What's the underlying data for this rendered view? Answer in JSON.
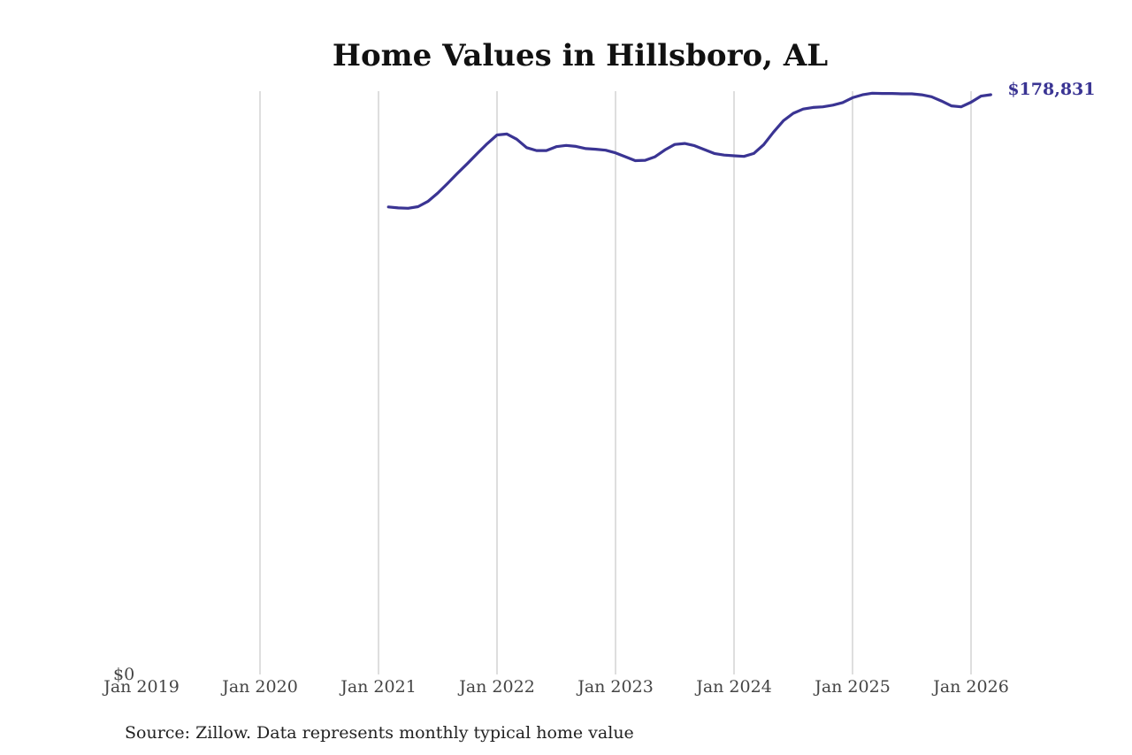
{
  "colors": {
    "line": "#3a3493",
    "grid": "#bdbdbd"
  },
  "source_note": "Source: Zillow. Data represents monthly typical home value",
  "chart_data": {
    "type": "line",
    "title": "Home Values in Hillsboro, AL",
    "xlabel": "",
    "ylabel": "",
    "x_ticks": [
      "Jan 2019",
      "Jan 2020",
      "Jan 2021",
      "Jan 2022",
      "Jan 2023",
      "Jan 2024",
      "Jan 2025",
      "Jan 2026"
    ],
    "y_ticks": [
      "$0"
    ],
    "ylim": [
      0,
      178831
    ],
    "xlim": [
      "2019-01",
      "2026-03"
    ],
    "grid": "vertical",
    "end_label": "$178,831",
    "series": [
      {
        "x": [
          "2021-02",
          "2021-03",
          "2021-04",
          "2021-05",
          "2021-06",
          "2021-07",
          "2021-08",
          "2021-09",
          "2021-10",
          "2021-11",
          "2021-12",
          "2022-01",
          "2022-02",
          "2022-03",
          "2022-04",
          "2022-05",
          "2022-06",
          "2022-07",
          "2022-08",
          "2022-09",
          "2022-10",
          "2022-11",
          "2022-12",
          "2023-01",
          "2023-02",
          "2023-03",
          "2023-04",
          "2023-05",
          "2023-06",
          "2023-07",
          "2023-08",
          "2023-09",
          "2023-10",
          "2023-11",
          "2023-12",
          "2024-01",
          "2024-02",
          "2024-03",
          "2024-04",
          "2024-05",
          "2024-06",
          "2024-07",
          "2024-08",
          "2024-09",
          "2024-10",
          "2024-11",
          "2024-12",
          "2025-01",
          "2025-02",
          "2025-03",
          "2025-04",
          "2025-05",
          "2025-06",
          "2025-07",
          "2025-08",
          "2025-09",
          "2025-10",
          "2025-11",
          "2025-12",
          "2026-01",
          "2026-02",
          "2026-03"
        ],
        "values": [
          144200,
          143900,
          143800,
          144300,
          145900,
          148500,
          151500,
          154600,
          157600,
          160700,
          163700,
          166400,
          166700,
          165100,
          162500,
          161600,
          161600,
          162800,
          163200,
          162900,
          162200,
          162000,
          161700,
          160900,
          159700,
          158500,
          158600,
          159700,
          161800,
          163500,
          163800,
          163100,
          161900,
          160700,
          160200,
          160000,
          159800,
          160700,
          163400,
          167300,
          170800,
          173100,
          174400,
          174900,
          175100,
          175600,
          176400,
          177900,
          178800,
          179300,
          179200,
          179200,
          179100,
          179100,
          178800,
          178200,
          176900,
          175400,
          175100,
          176500,
          178400,
          178831
        ]
      }
    ]
  }
}
